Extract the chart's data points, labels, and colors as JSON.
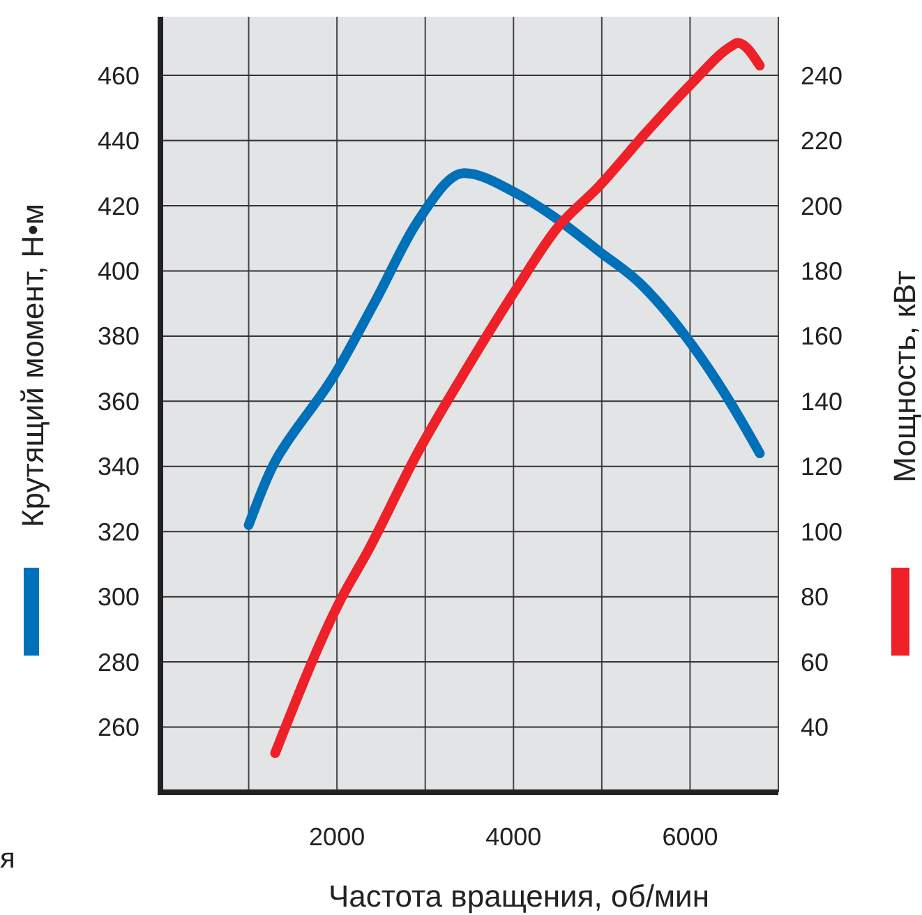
{
  "chart_data": {
    "type": "line",
    "xlabel": "Частота вращения, об/мин",
    "ylabel": "Крутящий момент, Н•м",
    "y2label": "Мощность, кВт",
    "xlim": [
      0,
      7000
    ],
    "xticks": [
      {
        "value": 1000,
        "label": null
      },
      2000,
      {
        "value": 3000,
        "label": null
      },
      4000,
      {
        "value": 5000,
        "label": null
      },
      6000,
      {
        "value": 7000,
        "label": null
      }
    ],
    "ylim": [
      240,
      478
    ],
    "yticks": [
      260,
      280,
      300,
      320,
      340,
      360,
      380,
      400,
      420,
      440,
      460
    ],
    "y2lim": [
      20,
      258
    ],
    "y2ticks": [
      40,
      60,
      80,
      100,
      120,
      140,
      160,
      180,
      200,
      220,
      240
    ],
    "grid": true,
    "marker": "none",
    "line_style": "solid",
    "annotations": [
      "я"
    ],
    "series": [
      {
        "color": "#0070b8",
        "x": [
          1000,
          1330,
          1400,
          1970,
          2440,
          2910,
          3440,
          4020,
          4490,
          4970,
          5440,
          5920,
          6470,
          6790
        ],
        "values": [
          322,
          343,
          346,
          368,
          391,
          415,
          430,
          424,
          416,
          406,
          396,
          381,
          359,
          344
        ]
      },
      {
        "color": "#ee2028",
        "axis": "y2",
        "x": [
          1300,
          2040,
          2350,
          2910,
          3470,
          4020,
          4490,
          4970,
          5520,
          6000,
          6470,
          6540,
          6790
        ],
        "values": [
          32,
          79,
          94,
          124,
          150,
          174,
          193,
          206,
          223,
          237,
          249,
          250,
          243
        ]
      }
    ]
  }
}
